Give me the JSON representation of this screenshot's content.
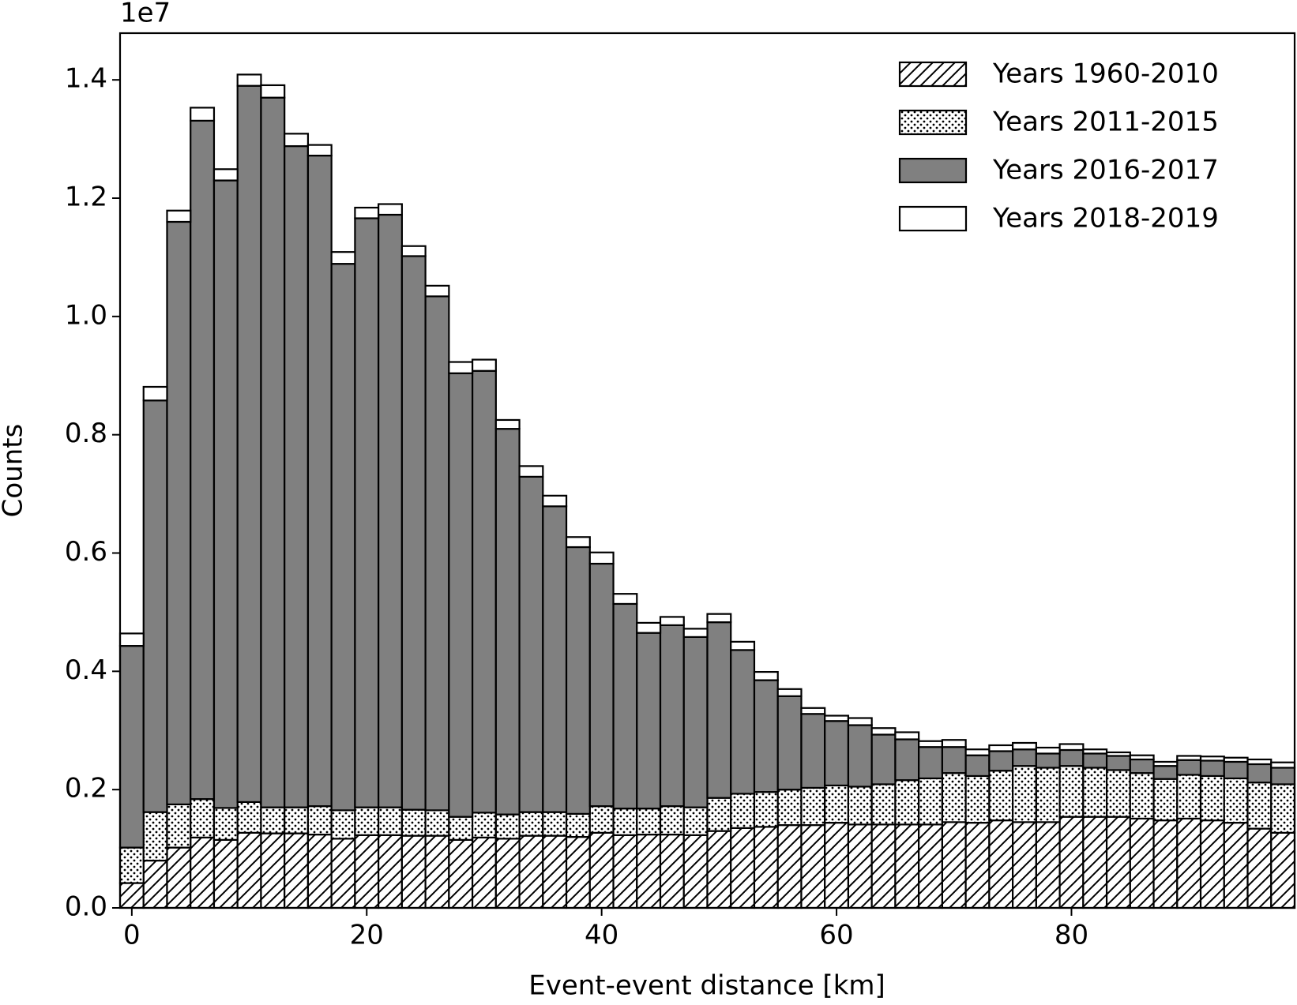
{
  "chart_data": {
    "type": "stacked_histogram",
    "offset_label": "1e7",
    "x_label": "Event-event distance [km]",
    "y_label": "Counts",
    "xlim": [
      -1,
      99
    ],
    "xticks": [
      0,
      20,
      40,
      60,
      80
    ],
    "ylim": [
      0,
      14790000
    ],
    "yticks": [
      {
        "value": 0,
        "label": "0.0"
      },
      {
        "value": 2000000,
        "label": "0.2"
      },
      {
        "value": 4000000,
        "label": "0.4"
      },
      {
        "value": 6000000,
        "label": "0.6"
      },
      {
        "value": 8000000,
        "label": "0.8"
      },
      {
        "value": 10000000,
        "label": "1.0"
      },
      {
        "value": 12000000,
        "label": "1.2"
      },
      {
        "value": 14000000,
        "label": "1.4"
      }
    ],
    "legend_position": "upper right",
    "bins": [
      -1,
      1,
      3,
      5,
      7,
      9,
      11,
      13,
      15,
      17,
      19,
      21,
      23,
      25,
      27,
      29,
      31,
      33,
      35,
      37,
      39,
      41,
      43,
      45,
      47,
      49,
      51,
      53,
      55,
      57,
      59,
      61,
      63,
      65,
      67,
      69,
      71,
      73,
      75,
      77,
      79,
      81,
      83,
      85,
      87,
      89,
      91,
      93,
      95,
      97,
      99
    ],
    "series": [
      {
        "name": "Years 1960-2010",
        "color": "#ffffff",
        "hatch": "///",
        "values": [
          420000,
          800000,
          1020000,
          1190000,
          1150000,
          1270000,
          1260000,
          1260000,
          1240000,
          1170000,
          1230000,
          1230000,
          1220000,
          1220000,
          1150000,
          1190000,
          1170000,
          1220000,
          1220000,
          1200000,
          1270000,
          1230000,
          1240000,
          1240000,
          1230000,
          1300000,
          1350000,
          1370000,
          1400000,
          1400000,
          1440000,
          1410000,
          1410000,
          1410000,
          1410000,
          1450000,
          1440000,
          1480000,
          1450000,
          1450000,
          1540000,
          1540000,
          1540000,
          1510000,
          1480000,
          1510000,
          1480000,
          1440000,
          1340000,
          1270000
        ]
      },
      {
        "name": "Years 2011-2015",
        "color": "#ffffff",
        "hatch": "...",
        "values": [
          600000,
          820000,
          730000,
          650000,
          540000,
          520000,
          440000,
          440000,
          480000,
          480000,
          470000,
          470000,
          440000,
          430000,
          390000,
          420000,
          410000,
          400000,
          400000,
          390000,
          450000,
          450000,
          440000,
          480000,
          470000,
          560000,
          580000,
          590000,
          600000,
          630000,
          630000,
          640000,
          680000,
          750000,
          780000,
          830000,
          790000,
          840000,
          950000,
          920000,
          860000,
          830000,
          790000,
          770000,
          700000,
          740000,
          750000,
          750000,
          780000,
          820000
        ]
      },
      {
        "name": "Years 2016-2017",
        "color": "#808080",
        "values": [
          3410000,
          6960000,
          9850000,
          11470000,
          10610000,
          12110000,
          12000000,
          11180000,
          11000000,
          9240000,
          9960000,
          10020000,
          9360000,
          8690000,
          7500000,
          7470000,
          6520000,
          5670000,
          5170000,
          4510000,
          4100000,
          3460000,
          2970000,
          3060000,
          2880000,
          2970000,
          2430000,
          1890000,
          1580000,
          1250000,
          1090000,
          1040000,
          840000,
          690000,
          530000,
          440000,
          350000,
          330000,
          280000,
          240000,
          270000,
          240000,
          240000,
          230000,
          220000,
          250000,
          260000,
          280000,
          310000,
          280000
        ]
      },
      {
        "name": "Years 2018-2019",
        "color": "#ffffff",
        "values": [
          210000,
          230000,
          190000,
          220000,
          190000,
          190000,
          210000,
          210000,
          180000,
          200000,
          180000,
          180000,
          170000,
          180000,
          190000,
          190000,
          150000,
          180000,
          180000,
          170000,
          190000,
          170000,
          170000,
          140000,
          140000,
          140000,
          140000,
          140000,
          120000,
          100000,
          90000,
          120000,
          110000,
          120000,
          100000,
          120000,
          100000,
          100000,
          110000,
          100000,
          100000,
          70000,
          60000,
          70000,
          70000,
          70000,
          70000,
          70000,
          80000,
          90000
        ]
      }
    ]
  }
}
